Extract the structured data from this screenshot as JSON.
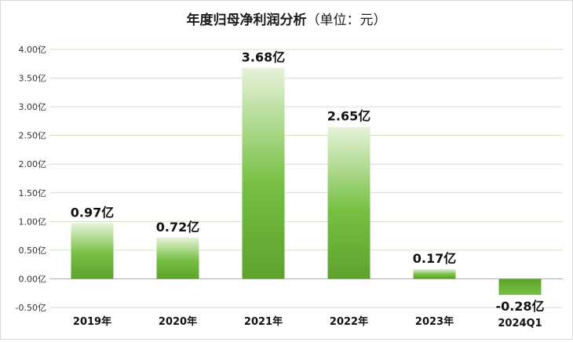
{
  "chart_data": {
    "type": "bar",
    "title": "年度归母净利润分析（单位：元）",
    "title_main": "年度归母净利润分析",
    "title_unit": "（单位：元）",
    "categories": [
      "2019年",
      "2020年",
      "2021年",
      "2022年",
      "2023年",
      "2024Q1"
    ],
    "values": [
      0.97,
      0.72,
      3.68,
      2.65,
      0.17,
      -0.28
    ],
    "value_labels": [
      "0.97亿",
      "0.72亿",
      "3.68亿",
      "2.65亿",
      "0.17亿",
      "-0.28亿"
    ],
    "unit": "亿",
    "ylim": [
      -0.5,
      4.0
    ],
    "yticks": [
      -0.5,
      0.0,
      0.5,
      1.0,
      1.5,
      2.0,
      2.5,
      3.0,
      3.5,
      4.0
    ],
    "ytick_labels": [
      "-0.50亿",
      "0.00亿",
      "0.50亿",
      "1.00亿",
      "1.50亿",
      "2.00亿",
      "2.50亿",
      "3.00亿",
      "3.50亿",
      "4.00亿"
    ],
    "grid": true,
    "legend": "none",
    "colors": {
      "bar_light": "#e6f2d9",
      "bar_mid": "#76c043",
      "bar_dark": "#5da22f",
      "grid": "#cfe3c2",
      "axis": "#b0b0b0"
    }
  }
}
